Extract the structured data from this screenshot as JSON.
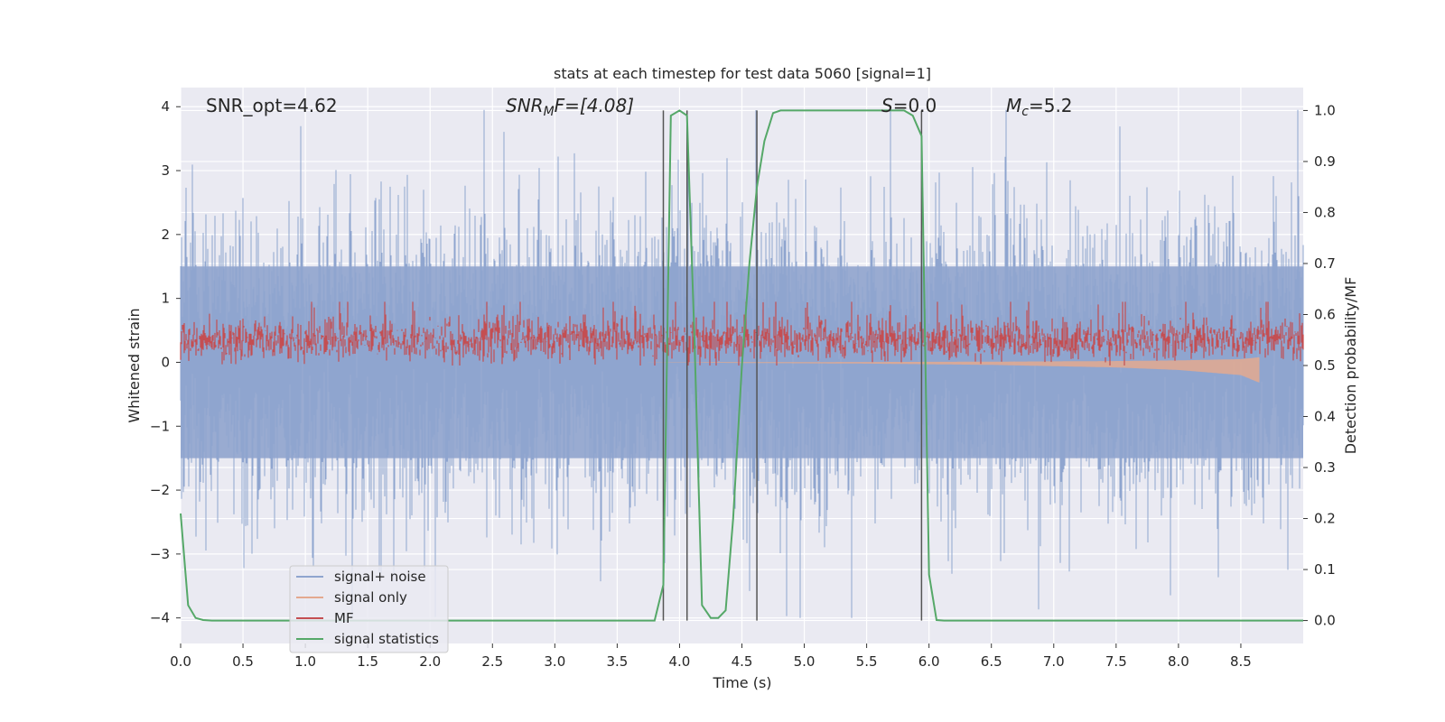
{
  "chart_data": {
    "type": "line",
    "title": "stats at each timestep for test data 5060 [signal=1]",
    "xlabel": "Time (s)",
    "ylabel": "Whitened strain",
    "y2label": "Detection probability/MF",
    "xlim": [
      0.0,
      9.0
    ],
    "ylim": [
      -4.4,
      4.3
    ],
    "y2lim": [
      -0.045,
      1.045
    ],
    "xticks": [
      "0.0",
      "0.5",
      "1.0",
      "1.5",
      "2.0",
      "2.5",
      "3.0",
      "3.5",
      "4.0",
      "4.5",
      "5.0",
      "5.5",
      "6.0",
      "6.5",
      "7.0",
      "7.5",
      "8.0",
      "8.5"
    ],
    "yticks": [
      "4",
      "3",
      "2",
      "1",
      "0",
      "−1",
      "−2",
      "−3",
      "−4"
    ],
    "y2ticks": [
      "1.0",
      "0.9",
      "0.8",
      "0.7",
      "0.6",
      "0.5",
      "0.4",
      "0.3",
      "0.2",
      "0.1",
      "0.0"
    ],
    "grid": true,
    "legend_position": "lower-left",
    "annotations": {
      "snr_opt": "SNR_opt=4.62",
      "snr_mf_base": "SNR",
      "snr_mf_sub": "M",
      "snr_mf_rest": "F=[4.08]",
      "s_italic": "S",
      "s_rest": "=0.0",
      "mc_base": "M",
      "mc_sub": "c",
      "mc_rest": "=5.2"
    },
    "vertical_lines": [
      3.87,
      4.06,
      4.62,
      5.94
    ],
    "series": [
      {
        "name": "signal+ noise",
        "color": "#8fa5cf",
        "axis": "left",
        "description_values": {
          "approx_range": [
            -4.0,
            3.9
          ],
          "duration": 9.0
        }
      },
      {
        "name": "signal only",
        "color": "#e4a98f",
        "axis": "left",
        "envelope": {
          "x": [
            3.7,
            4.5,
            5.5,
            6.5,
            7.5,
            8.0,
            8.5,
            8.65
          ],
          "amp": [
            0.0,
            0.01,
            0.02,
            0.04,
            0.08,
            0.12,
            0.2,
            0.32
          ]
        }
      },
      {
        "name": "MF",
        "color": "#c44e52",
        "axis": "right",
        "description_values": {
          "approx_range": [
            0.5,
            0.62
          ]
        }
      },
      {
        "name": "signal statistics",
        "color": "#55a868",
        "axis": "right",
        "x": [
          0.0,
          0.06,
          0.12,
          0.18,
          0.25,
          0.5,
          1.0,
          2.0,
          3.0,
          3.8,
          3.87,
          3.93,
          4.0,
          4.06,
          4.12,
          4.18,
          4.25,
          4.31,
          4.37,
          4.43,
          4.5,
          4.56,
          4.62,
          4.68,
          4.75,
          4.81,
          4.87,
          5.0,
          5.5,
          5.8,
          5.87,
          5.94,
          6.0,
          6.06,
          6.12,
          6.5,
          7.0,
          8.0,
          9.0
        ],
        "values": [
          0.21,
          0.03,
          0.005,
          0.001,
          0.0,
          0.0,
          0.0,
          0.0,
          0.0,
          0.0,
          0.07,
          0.99,
          1.0,
          0.99,
          0.55,
          0.03,
          0.005,
          0.005,
          0.02,
          0.2,
          0.5,
          0.7,
          0.85,
          0.94,
          0.995,
          1.0,
          1.0,
          1.0,
          1.0,
          1.0,
          0.99,
          0.95,
          0.09,
          0.001,
          0.0,
          0.0,
          0.0,
          0.0,
          0.0
        ]
      }
    ]
  }
}
